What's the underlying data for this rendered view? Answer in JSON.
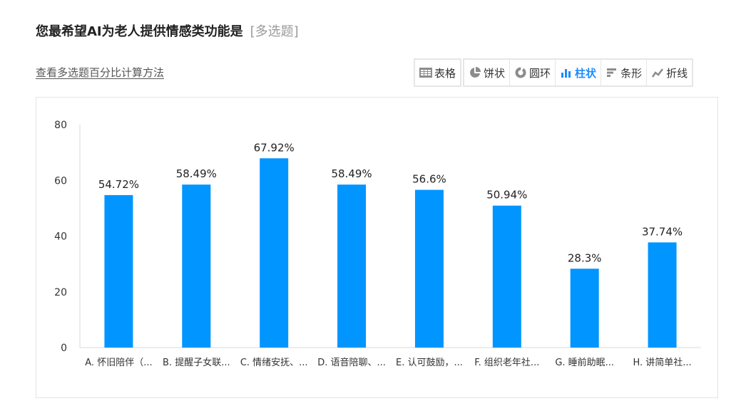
{
  "question": {
    "title": "您最希望AI为老人提供情感类功能是",
    "type_tag": "[多选题]"
  },
  "method_link": "查看多选题百分比计算方法",
  "toolbar": {
    "groups": [
      [
        {
          "label": "表格",
          "icon": "table-icon",
          "active": false
        }
      ],
      [
        {
          "label": "饼状",
          "icon": "pie-chart-icon",
          "active": false
        },
        {
          "label": "圆环",
          "icon": "donut-chart-icon",
          "active": false
        },
        {
          "label": "柱状",
          "icon": "bar-chart-icon",
          "active": true
        },
        {
          "label": "条形",
          "icon": "horizontal-bar-icon",
          "active": false
        },
        {
          "label": "折线",
          "icon": "line-chart-icon",
          "active": false
        }
      ]
    ],
    "accent_color": "#1a8cff"
  },
  "chart_data": {
    "type": "bar",
    "categories": [
      "A. 怀旧陪伴（...",
      "B. 提醒子女联...",
      "C. 情绪安抚、...",
      "D. 语音陪聊、...",
      "E. 认可鼓励，...",
      "F. 组织老年社...",
      "G. 睡前助眠...",
      "H. 讲简单社..."
    ],
    "values": [
      54.72,
      58.49,
      67.92,
      58.49,
      56.6,
      50.94,
      28.3,
      37.74
    ],
    "value_labels": [
      "54.72%",
      "58.49%",
      "67.92%",
      "58.49%",
      "56.6%",
      "50.94%",
      "28.3%",
      "37.74%"
    ],
    "ylim": [
      0,
      80
    ],
    "yticks": [
      0,
      20,
      40,
      60,
      80
    ],
    "bar_color": "#0095ff",
    "grid": false,
    "legend": "none"
  }
}
